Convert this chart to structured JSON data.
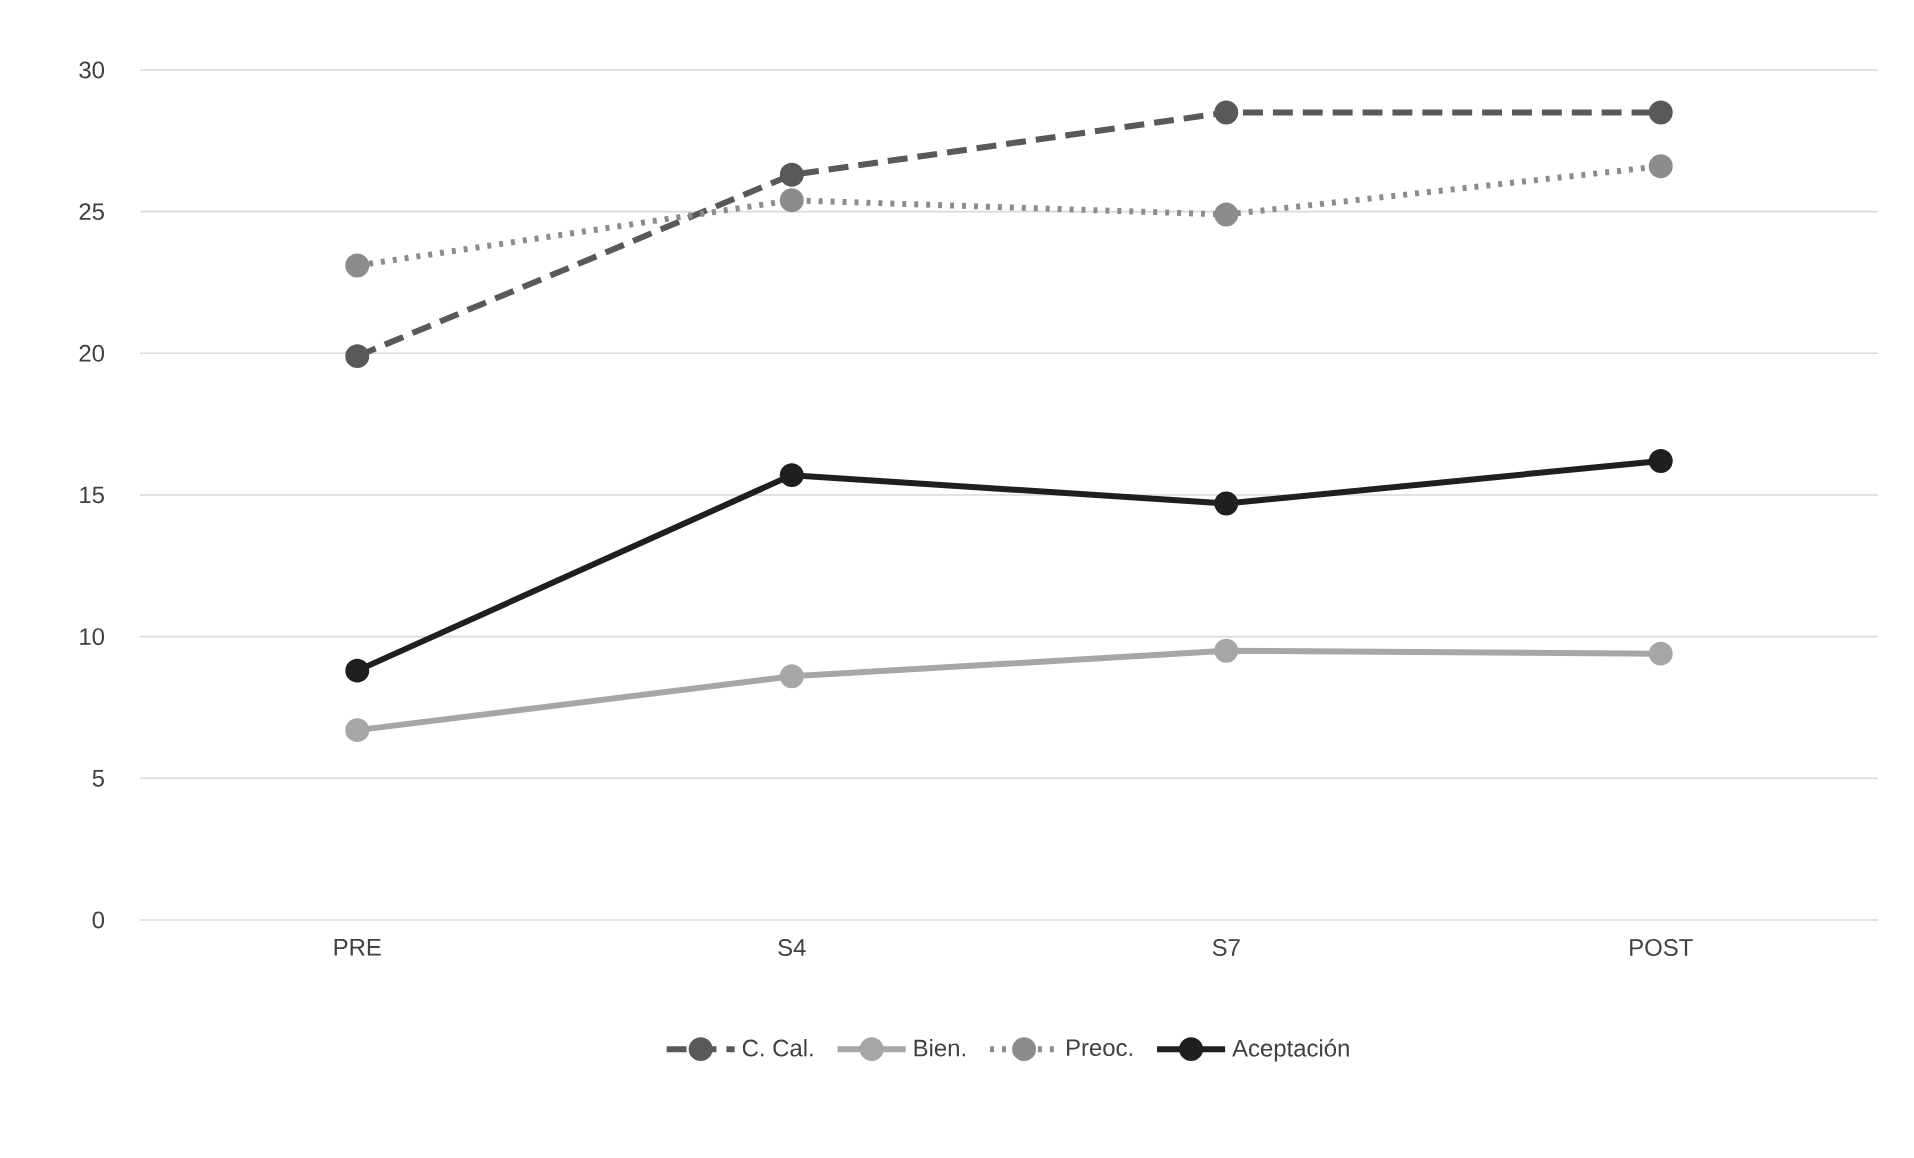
{
  "chart_data": {
    "type": "line",
    "categories": [
      "PRE",
      "S4",
      "S7",
      "POST"
    ],
    "series": [
      {
        "name": "C. Cal.",
        "color": "#595959",
        "line_style": "dashed",
        "values": [
          19.9,
          26.3,
          28.5,
          28.5
        ]
      },
      {
        "name": "Bien.",
        "color": "#a6a6a6",
        "line_style": "solid",
        "values": [
          6.7,
          8.6,
          9.5,
          9.4
        ]
      },
      {
        "name": "Preoc.",
        "color": "#8c8c8c",
        "line_style": "dotted",
        "values": [
          23.1,
          25.4,
          24.9,
          26.6
        ]
      },
      {
        "name": "Aceptación",
        "color": "#1f1f1f",
        "line_style": "solid",
        "values": [
          8.8,
          15.7,
          14.7,
          16.2
        ]
      }
    ],
    "ylim": [
      0,
      30
    ],
    "yticks": [
      0,
      5,
      10,
      15,
      20,
      25,
      30
    ],
    "grid": "y",
    "legend": "bottom",
    "marker": "circle"
  }
}
